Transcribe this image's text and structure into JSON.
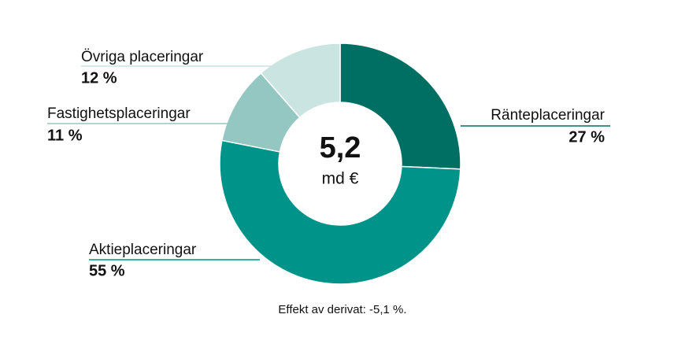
{
  "chart_data": {
    "type": "donut",
    "categories": [
      "Ränteplaceringar",
      "Aktieplaceringar",
      "Fastighetsplaceringar",
      "Övriga placeringar"
    ],
    "values": [
      27,
      55,
      11,
      12
    ],
    "value_labels": [
      "27 %",
      "55 %",
      "11 %",
      "12 %"
    ],
    "colors": [
      "#006f63",
      "#00938a",
      "#95c7c2",
      "#c9e4e1"
    ],
    "center_value": "5,2",
    "center_unit": "md €",
    "note": "Effekt av derivat: -5,1 %."
  }
}
